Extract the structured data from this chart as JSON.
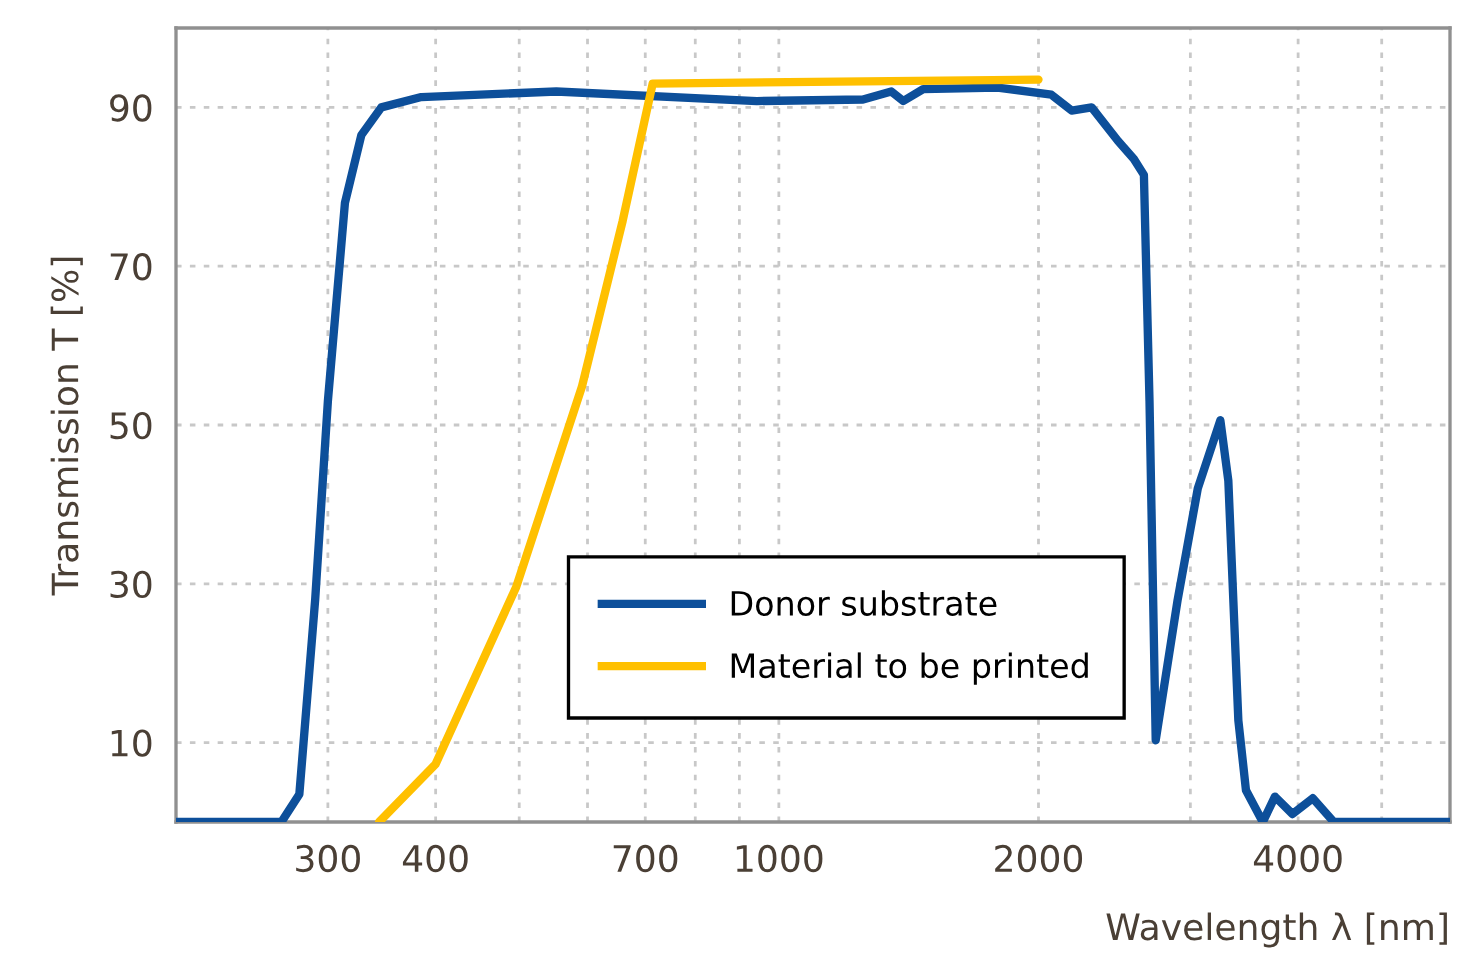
{
  "chart_data": {
    "type": "line",
    "xlabel": "Wavelength λ [nm]",
    "ylabel": "Transmission T [%]",
    "log": "x",
    "xlim": [
      200,
      6000
    ],
    "ylim": [
      0,
      100
    ],
    "xticks": [
      300,
      400,
      {
        "value": 500,
        "label": null
      },
      {
        "value": 600,
        "label": null
      },
      700,
      {
        "value": 800,
        "label": null
      },
      {
        "value": 900,
        "label": null
      },
      1000,
      2000,
      {
        "value": 3000,
        "label": null
      },
      4000,
      {
        "value": 5000,
        "label": null
      }
    ],
    "yticks": [
      10,
      30,
      50,
      70,
      90
    ],
    "grid": true,
    "legend": "bottom",
    "line_style": "solid",
    "marker": "none",
    "series": [
      {
        "name": "Donor substrate",
        "color": "#0d4f9a",
        "x": [
          200,
          265,
          278,
          290,
          300,
          314,
          328,
          346,
          385,
          552,
          943,
          1252,
          1350,
          1394,
          1470,
          1793,
          2070,
          2185,
          2305,
          2472,
          2580,
          2650,
          2690,
          2735,
          2900,
          3060,
          3250,
          3320,
          3410,
          3480,
          3640,
          3760,
          3940,
          4160,
          4400,
          6000
        ],
        "values": [
          0,
          0,
          3.5,
          28,
          53,
          78,
          86.5,
          90,
          91.3,
          92,
          90.8,
          91,
          92,
          90.8,
          92.3,
          92.5,
          91.6,
          89.6,
          90,
          85.8,
          83.5,
          81.5,
          53,
          10.3,
          28,
          42,
          50.6,
          43,
          12.8,
          4,
          0,
          3.2,
          1,
          3,
          0,
          0
        ]
      },
      {
        "name": "Material to be printed",
        "color": "#ffc000",
        "x": [
          344,
          400,
          496,
          591,
          659,
          714,
          2000
        ],
        "values": [
          0,
          7.3,
          29.6,
          54.8,
          75.7,
          93,
          93.5
        ]
      }
    ]
  }
}
